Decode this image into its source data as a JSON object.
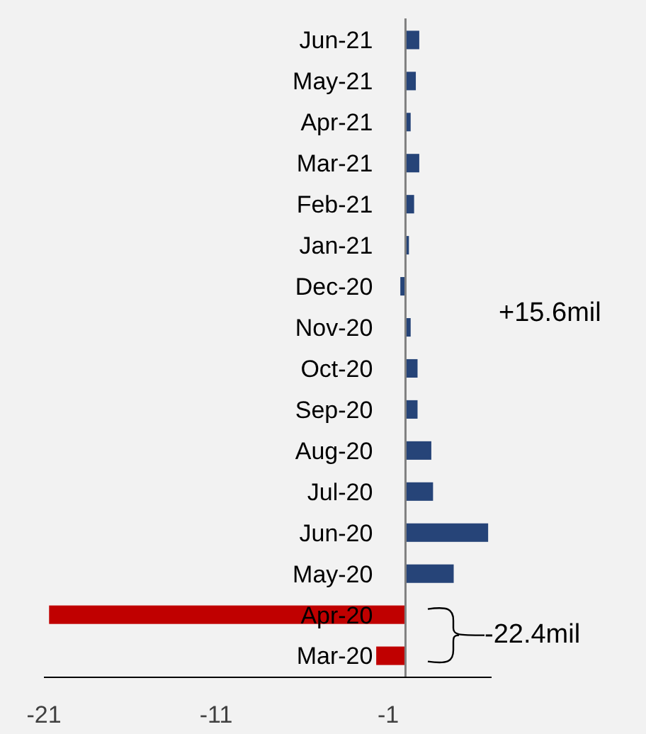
{
  "chart_data": {
    "type": "bar",
    "orientation": "horizontal",
    "categories": [
      "Jun-21",
      "May-21",
      "Apr-21",
      "Mar-21",
      "Feb-21",
      "Jan-21",
      "Dec-20",
      "Nov-20",
      "Oct-20",
      "Sep-20",
      "Aug-20",
      "Jul-20",
      "Jun-20",
      "May-20",
      "Apr-20",
      "Mar-20"
    ],
    "values": [
      0.8,
      0.6,
      0.3,
      0.8,
      0.5,
      0.2,
      -0.3,
      0.3,
      0.7,
      0.7,
      1.5,
      1.6,
      4.8,
      2.8,
      -20.7,
      -1.7
    ],
    "colors": [
      "#264478",
      "#264478",
      "#264478",
      "#264478",
      "#264478",
      "#264478",
      "#264478",
      "#264478",
      "#264478",
      "#264478",
      "#264478",
      "#264478",
      "#264478",
      "#264478",
      "#c00000",
      "#c00000"
    ],
    "xlim": [
      -21,
      5
    ],
    "xticks": [
      -21,
      -11,
      -1
    ],
    "grid": false,
    "annotations": [
      "+15.6mil",
      "-22.4mil"
    ]
  }
}
